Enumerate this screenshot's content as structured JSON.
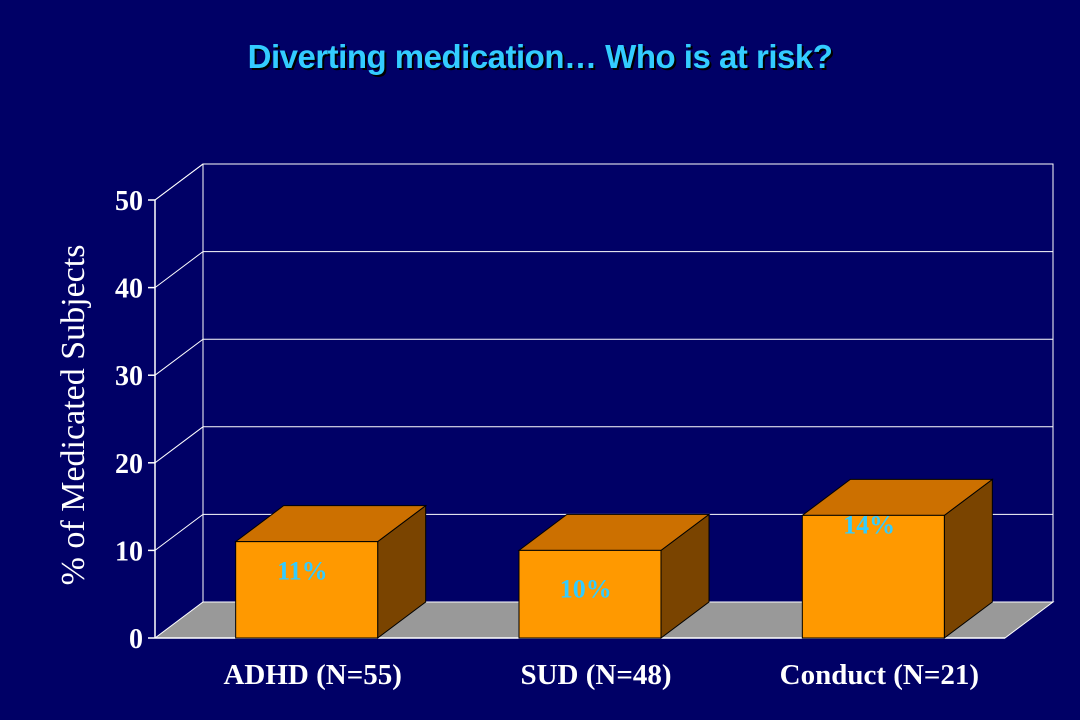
{
  "colors": {
    "background": "#000066",
    "title": "#33ccff",
    "bar_front": "#ff9900",
    "bar_top": "#cc7000",
    "bar_side": "#7a4400",
    "floor": "#999999",
    "data_label": "#33ccff"
  },
  "chart_data": {
    "type": "bar",
    "title": "Diverting medication… Who is at risk?",
    "ylabel": "% of Medicated Subjects",
    "xlabel": "",
    "ylim": [
      0,
      50
    ],
    "yticks": [
      0,
      10,
      20,
      30,
      40,
      50
    ],
    "ytick_labels": [
      "0",
      "10",
      "20",
      "30",
      "40",
      "50"
    ],
    "grid": true,
    "three_d": true,
    "categories": [
      "ADHD (N=55)",
      "SUD (N=48)",
      "Conduct (N=21)"
    ],
    "values": [
      11,
      10,
      14
    ],
    "data_labels": [
      "11%",
      "10%",
      "14%"
    ]
  }
}
